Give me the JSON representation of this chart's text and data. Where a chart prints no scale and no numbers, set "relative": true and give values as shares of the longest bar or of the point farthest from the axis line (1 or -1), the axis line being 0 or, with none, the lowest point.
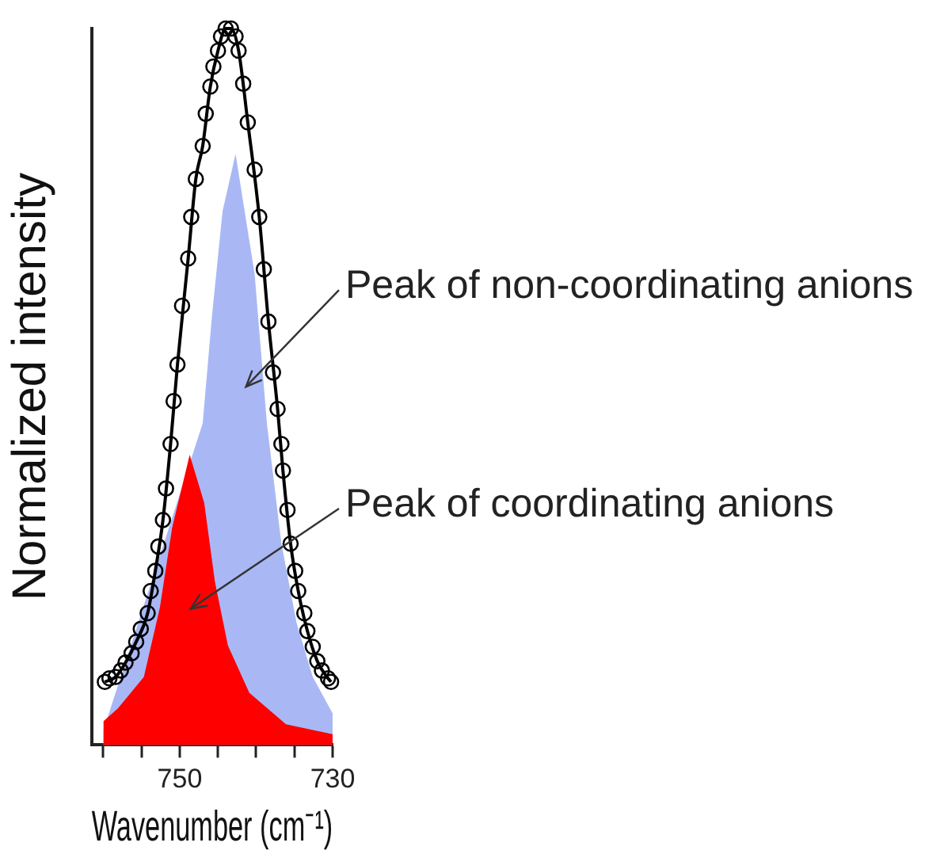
{
  "chart_data": {
    "type": "line",
    "relative": true,
    "xlabel": "Wavenumber (cm⁻¹)",
    "ylabel": "Normalized intensity",
    "xlim": [
      761.5,
      730
    ],
    "xticks": [
      {
        "value": 760,
        "label": null
      },
      {
        "value": 755,
        "label": null
      },
      750,
      {
        "value": 745,
        "label": null
      },
      {
        "value": 740,
        "label": null
      },
      {
        "value": 735,
        "label": null
      },
      730
    ],
    "grid": false,
    "legend": false,
    "annotations": [
      "Peak of non-coordinating anions",
      "Peak of coordinating anions"
    ],
    "series": [
      {
        "type": "area",
        "color": "#a9b8f5",
        "x": [
          760,
          747,
          745.8,
          744.4,
          742.7,
          740.2,
          738.6,
          736.7,
          734.7,
          732.6,
          730
        ],
        "values": [
          0.02,
          0.449,
          0.597,
          0.745,
          0.825,
          0.657,
          0.449,
          0.281,
          0.17,
          0.095,
          0.044
        ]
      },
      {
        "type": "area",
        "color": "#ff0000",
        "x": [
          760,
          758.1,
          754.7,
          752.6,
          751,
          748.7,
          746.8,
          745.4,
          743.7,
          740.9,
          736.1,
          730
        ],
        "values": [
          0.033,
          0.051,
          0.095,
          0.192,
          0.303,
          0.405,
          0.338,
          0.228,
          0.139,
          0.073,
          0.029,
          0.015
        ]
      },
      {
        "type": "line",
        "color": "#000000",
        "marker": "none",
        "x": [
          759.8,
          758.4,
          757.1,
          755.7,
          754.2,
          753.2,
          752.2,
          751.2,
          750.3,
          748.9,
          747.9,
          747,
          746,
          745,
          744,
          743.3,
          742.3,
          741.1,
          739.6,
          738.4,
          737.2,
          736.5,
          735.5,
          734.5,
          733.3,
          732,
          730.6,
          730.2
        ],
        "values": [
          0.088,
          0.095,
          0.115,
          0.144,
          0.184,
          0.243,
          0.314,
          0.42,
          0.531,
          0.679,
          0.79,
          0.836,
          0.919,
          0.969,
          1.0,
          1.0,
          0.969,
          0.869,
          0.737,
          0.591,
          0.469,
          0.383,
          0.281,
          0.215,
          0.159,
          0.117,
          0.093,
          0.088
        ]
      },
      {
        "type": "scatter",
        "color": "#000000",
        "marker": "circle",
        "x": [
          759.8,
          759.2,
          758.4,
          757.7,
          757.1,
          756.3,
          755.7,
          755.1,
          754.2,
          753.8,
          753.2,
          752.8,
          752.2,
          751.8,
          751.2,
          750.8,
          750.3,
          749.7,
          748.9,
          748.5,
          747.9,
          747,
          746.6,
          746,
          745.6,
          745,
          744.6,
          744,
          743.3,
          742.7,
          742.3,
          741.7,
          741.1,
          740.2,
          739.6,
          739,
          738.4,
          737.8,
          737.2,
          736.7,
          736.5,
          735.9,
          735.5,
          734.9,
          734.5,
          733.7,
          733.3,
          732.6,
          732,
          731.4,
          730.6,
          730.2
        ],
        "values": [
          0.088,
          0.093,
          0.095,
          0.104,
          0.115,
          0.128,
          0.144,
          0.162,
          0.184,
          0.215,
          0.243,
          0.277,
          0.314,
          0.358,
          0.42,
          0.48,
          0.531,
          0.613,
          0.679,
          0.737,
          0.79,
          0.836,
          0.881,
          0.919,
          0.947,
          0.969,
          0.989,
          1.0,
          1.0,
          0.989,
          0.969,
          0.923,
          0.869,
          0.803,
          0.737,
          0.664,
          0.591,
          0.52,
          0.469,
          0.42,
          0.383,
          0.328,
          0.281,
          0.243,
          0.215,
          0.184,
          0.159,
          0.137,
          0.117,
          0.104,
          0.093,
          0.088
        ]
      }
    ]
  }
}
